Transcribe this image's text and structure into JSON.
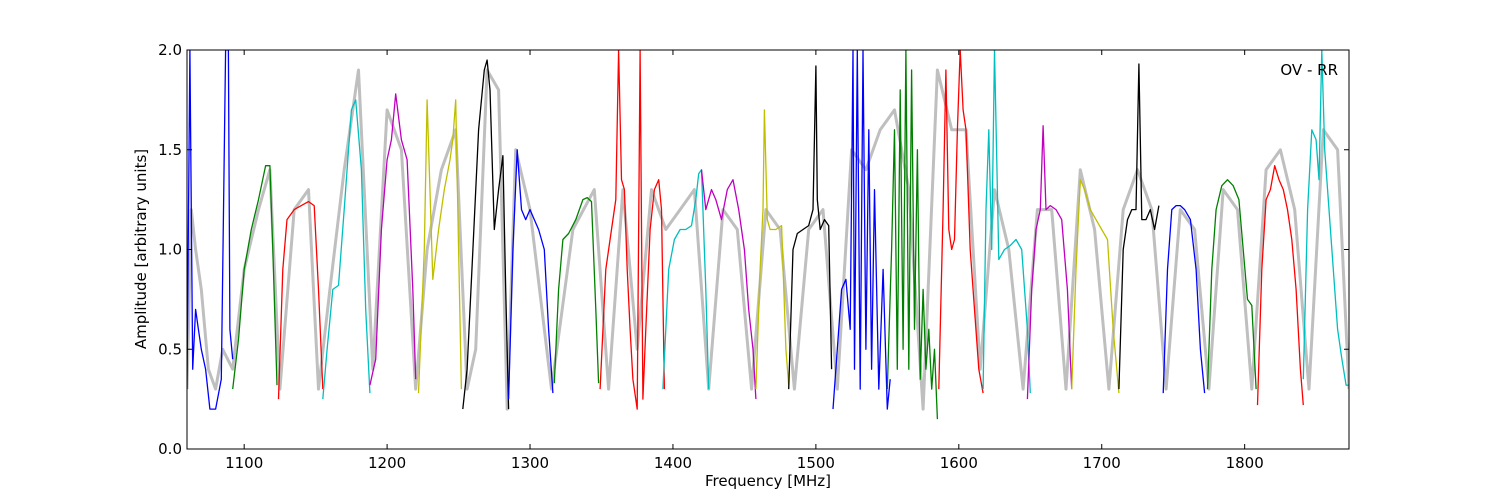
{
  "chart_data": {
    "type": "line",
    "title": "",
    "annotation": "OV - RR",
    "xlabel": "Frequency [MHz]",
    "ylabel": "Amplitude [arbitrary units]",
    "xlim": [
      1060,
      1873
    ],
    "ylim": [
      0,
      2.0
    ],
    "xticks": [
      1100,
      1200,
      1300,
      1400,
      1500,
      1600,
      1700,
      1800
    ],
    "yticks": [
      0.0,
      0.5,
      1.0,
      1.5,
      2.0
    ],
    "xtick_labels": [
      "1100",
      "1200",
      "1300",
      "1400",
      "1500",
      "1600",
      "1700",
      "1800"
    ],
    "ytick_labels": [
      "0.0",
      "0.5",
      "1.0",
      "1.5",
      "2.0"
    ],
    "grid": false,
    "colors": {
      "envelope": "#bfbfbf",
      "blue": "#0000ff",
      "green": "#008000",
      "red": "#ff0000",
      "cyan": "#00bfbf",
      "magenta": "#bf00bf",
      "yellow": "#bfbf00",
      "black": "#000000"
    },
    "envelope_series": [
      {
        "x": [
          1060,
          1063,
          1066,
          1070,
          1075,
          1080,
          1085,
          1092,
          1100,
          1110,
          1118,
          1125,
          1135,
          1145,
          1152,
          1160,
          1170,
          1180,
          1190,
          1200,
          1210,
          1220,
          1228,
          1238,
          1248,
          1256,
          1262,
          1270,
          1278,
          1284,
          1290,
          1300,
          1315,
          1330,
          1345,
          1355,
          1365,
          1375,
          1385,
          1395,
          1405,
          1415,
          1425,
          1435,
          1445,
          1455,
          1465,
          1475,
          1485,
          1495,
          1505,
          1515,
          1525,
          1535,
          1545,
          1555,
          1565,
          1575,
          1585,
          1595,
          1605,
          1615,
          1625,
          1635,
          1645,
          1655,
          1665,
          1675,
          1685,
          1695,
          1705,
          1715,
          1725,
          1735,
          1745,
          1755,
          1765,
          1775,
          1785,
          1795,
          1805,
          1815,
          1825,
          1835,
          1845,
          1855,
          1865,
          1873
        ],
        "y": [
          0.3,
          1.2,
          1.0,
          0.8,
          0.4,
          0.3,
          0.5,
          0.4,
          0.9,
          1.2,
          1.4,
          0.3,
          1.2,
          1.3,
          0.3,
          0.8,
          1.4,
          1.9,
          0.4,
          1.7,
          1.5,
          0.3,
          1.0,
          1.4,
          1.6,
          0.3,
          0.5,
          1.9,
          1.8,
          0.2,
          1.5,
          1.2,
          0.3,
          1.1,
          1.3,
          0.3,
          1.3,
          0.5,
          1.3,
          1.1,
          1.2,
          1.3,
          0.3,
          1.2,
          1.1,
          0.3,
          1.2,
          1.1,
          0.3,
          1.1,
          1.2,
          0.3,
          1.5,
          1.4,
          1.6,
          1.7,
          1.3,
          0.2,
          1.9,
          1.6,
          1.6,
          0.4,
          1.3,
          1.0,
          0.3,
          1.2,
          1.2,
          0.3,
          1.4,
          1.1,
          0.3,
          1.2,
          1.4,
          1.2,
          0.3,
          1.2,
          1.1,
          0.3,
          1.3,
          1.2,
          0.3,
          1.4,
          1.5,
          1.2,
          0.3,
          1.6,
          1.5,
          0.3
        ]
      }
    ],
    "series": [
      {
        "color": "blue",
        "x": [
          1060,
          1062,
          1064,
          1066,
          1068,
          1070,
          1073,
          1076,
          1080,
          1084,
          1087,
          1089,
          1090,
          1092
        ],
        "y": [
          0.3,
          2.0,
          0.4,
          0.7,
          0.6,
          0.5,
          0.4,
          0.2,
          0.2,
          0.35,
          2.0,
          2.0,
          0.6,
          0.45
        ]
      },
      {
        "color": "green",
        "x": [
          1092,
          1096,
          1100,
          1105,
          1110,
          1115,
          1118,
          1120,
          1123
        ],
        "y": [
          0.3,
          0.55,
          0.9,
          1.1,
          1.25,
          1.42,
          1.42,
          1.0,
          0.32
        ]
      },
      {
        "color": "red",
        "x": [
          1124,
          1127,
          1130,
          1135,
          1140,
          1145,
          1149,
          1152,
          1155
        ],
        "y": [
          0.25,
          0.9,
          1.15,
          1.2,
          1.22,
          1.24,
          1.22,
          0.8,
          0.3
        ]
      },
      {
        "color": "cyan",
        "x": [
          1155,
          1158,
          1162,
          1166,
          1170,
          1175,
          1178,
          1182,
          1185,
          1188
        ],
        "y": [
          0.25,
          0.5,
          0.8,
          0.82,
          1.2,
          1.7,
          1.75,
          1.4,
          0.7,
          0.28
        ]
      },
      {
        "color": "magenta",
        "x": [
          1188,
          1192,
          1196,
          1200,
          1203,
          1206,
          1210,
          1214,
          1218,
          1220
        ],
        "y": [
          0.32,
          0.45,
          1.1,
          1.45,
          1.55,
          1.78,
          1.55,
          1.45,
          0.8,
          0.35
        ]
      },
      {
        "color": "yellow",
        "x": [
          1222,
          1226,
          1228,
          1232,
          1236,
          1240,
          1244,
          1246,
          1248,
          1250,
          1252
        ],
        "y": [
          0.28,
          1.0,
          1.75,
          0.85,
          1.1,
          1.3,
          1.45,
          1.55,
          1.75,
          1.0,
          0.3
        ]
      },
      {
        "color": "black",
        "x": [
          1253,
          1256,
          1260,
          1264,
          1268,
          1270,
          1272,
          1275,
          1278,
          1281,
          1283,
          1285
        ],
        "y": [
          0.2,
          0.4,
          1.0,
          1.6,
          1.9,
          1.95,
          1.8,
          1.1,
          1.3,
          1.47,
          0.8,
          0.2
        ]
      },
      {
        "color": "blue",
        "x": [
          1285,
          1288,
          1291,
          1294,
          1297,
          1300,
          1303,
          1306,
          1310,
          1313,
          1316
        ],
        "y": [
          0.25,
          1.0,
          1.5,
          1.2,
          1.15,
          1.2,
          1.15,
          1.1,
          1.0,
          0.6,
          0.28
        ]
      },
      {
        "color": "green",
        "x": [
          1317,
          1320,
          1323,
          1327,
          1332,
          1337,
          1340,
          1343,
          1346,
          1348
        ],
        "y": [
          0.33,
          0.8,
          1.05,
          1.08,
          1.15,
          1.25,
          1.26,
          1.24,
          0.7,
          0.33
        ]
      },
      {
        "color": "red",
        "x": [
          1349,
          1353,
          1357,
          1360,
          1362,
          1364,
          1366,
          1368,
          1370,
          1372,
          1375,
          1377,
          1379,
          1381,
          1384,
          1387,
          1390,
          1392,
          1394
        ],
        "y": [
          0.3,
          0.9,
          1.1,
          1.25,
          2.0,
          1.35,
          1.3,
          0.9,
          0.6,
          0.35,
          0.2,
          2.0,
          0.25,
          0.6,
          1.1,
          1.3,
          1.35,
          1.2,
          0.3
        ]
      },
      {
        "color": "cyan",
        "x": [
          1393,
          1397,
          1401,
          1405,
          1409,
          1413,
          1416,
          1418,
          1420,
          1423,
          1425
        ],
        "y": [
          0.3,
          0.9,
          1.05,
          1.1,
          1.1,
          1.12,
          1.25,
          1.38,
          1.4,
          0.8,
          0.3
        ]
      },
      {
        "color": "magenta",
        "x": [
          1420,
          1423,
          1427,
          1430,
          1434,
          1438,
          1442,
          1446,
          1450,
          1453,
          1456,
          1458
        ],
        "y": [
          1.4,
          1.2,
          1.3,
          1.25,
          1.15,
          1.3,
          1.35,
          1.2,
          1.0,
          0.7,
          0.5,
          0.25
        ]
      },
      {
        "color": "yellow",
        "x": [
          1458,
          1461,
          1463,
          1464,
          1466,
          1468,
          1472,
          1476,
          1479,
          1481
        ],
        "y": [
          0.3,
          0.9,
          1.2,
          1.7,
          1.15,
          1.1,
          1.1,
          1.12,
          0.5,
          0.32
        ]
      },
      {
        "color": "black",
        "x": [
          1481,
          1484,
          1487,
          1491,
          1495,
          1498,
          1500,
          1501,
          1503,
          1506,
          1509,
          1511
        ],
        "y": [
          0.3,
          1.0,
          1.08,
          1.1,
          1.12,
          1.2,
          1.92,
          1.25,
          1.1,
          1.15,
          1.12,
          0.4
        ]
      },
      {
        "color": "blue",
        "x": [
          1512,
          1515,
          1518,
          1521,
          1524,
          1526,
          1527,
          1529,
          1531,
          1533,
          1535,
          1537,
          1539,
          1541,
          1544,
          1547,
          1550,
          1552
        ],
        "y": [
          0.2,
          0.5,
          0.8,
          0.85,
          0.6,
          2.0,
          0.4,
          2.0,
          0.3,
          2.0,
          0.5,
          1.6,
          0.4,
          1.3,
          0.3,
          0.9,
          0.2,
          0.35
        ]
      },
      {
        "color": "green",
        "x": [
          1550,
          1553,
          1555,
          1557,
          1559,
          1561,
          1563,
          1565,
          1567,
          1569,
          1571,
          1573,
          1575,
          1577,
          1579,
          1581,
          1583,
          1585
        ],
        "y": [
          0.3,
          1.0,
          1.6,
          0.4,
          1.8,
          0.5,
          2.0,
          0.4,
          1.9,
          0.6,
          1.5,
          0.35,
          0.8,
          0.4,
          0.6,
          0.3,
          0.5,
          0.15
        ]
      },
      {
        "color": "red",
        "x": [
          1586,
          1589,
          1591,
          1593,
          1595,
          1597,
          1599,
          1601,
          1603,
          1605,
          1608,
          1611,
          1614,
          1617
        ],
        "y": [
          0.3,
          1.2,
          1.9,
          1.1,
          1.0,
          1.05,
          1.6,
          2.0,
          1.7,
          1.6,
          1.0,
          0.7,
          0.4,
          0.28
        ]
      },
      {
        "color": "cyan",
        "x": [
          1617,
          1619,
          1621,
          1623,
          1625,
          1628,
          1632,
          1636,
          1640,
          1644,
          1648,
          1650
        ],
        "y": [
          0.3,
          1.2,
          1.6,
          1.0,
          2.0,
          0.95,
          1.0,
          1.02,
          1.05,
          1.0,
          0.6,
          0.28
        ]
      },
      {
        "color": "magenta",
        "x": [
          1648,
          1651,
          1654,
          1657,
          1659,
          1661,
          1664,
          1668,
          1672,
          1676,
          1679
        ],
        "y": [
          0.25,
          0.8,
          1.1,
          1.2,
          1.62,
          1.2,
          1.22,
          1.2,
          1.15,
          0.8,
          0.3
        ]
      },
      {
        "color": "yellow",
        "x": [
          1679,
          1682,
          1685,
          1688,
          1692,
          1696,
          1700,
          1704,
          1708,
          1712
        ],
        "y": [
          0.3,
          0.9,
          1.35,
          1.3,
          1.2,
          1.15,
          1.1,
          1.05,
          0.6,
          0.28
        ]
      },
      {
        "color": "black",
        "x": [
          1712,
          1715,
          1718,
          1721,
          1724,
          1726,
          1728,
          1731,
          1734,
          1737,
          1740
        ],
        "y": [
          0.3,
          1.0,
          1.15,
          1.2,
          1.2,
          1.93,
          1.15,
          1.15,
          1.2,
          1.1,
          1.22
        ]
      },
      {
        "color": "blue",
        "x": [
          1743,
          1746,
          1749,
          1752,
          1755,
          1758,
          1762,
          1766,
          1769,
          1772
        ],
        "y": [
          0.28,
          0.9,
          1.2,
          1.22,
          1.22,
          1.2,
          1.15,
          0.9,
          0.5,
          0.28
        ]
      },
      {
        "color": "green",
        "x": [
          1774,
          1777,
          1780,
          1784,
          1788,
          1792,
          1796,
          1799,
          1802,
          1805,
          1808
        ],
        "y": [
          0.3,
          0.9,
          1.2,
          1.32,
          1.35,
          1.32,
          1.25,
          1.0,
          0.75,
          0.72,
          0.3
        ]
      },
      {
        "color": "red",
        "x": [
          1809,
          1812,
          1815,
          1818,
          1821,
          1824,
          1827,
          1830,
          1833,
          1836,
          1839,
          1841
        ],
        "y": [
          0.22,
          0.9,
          1.25,
          1.3,
          1.42,
          1.35,
          1.3,
          1.2,
          1.05,
          0.8,
          0.4,
          0.22
        ]
      },
      {
        "color": "cyan",
        "x": [
          1841,
          1844,
          1847,
          1850,
          1852,
          1854,
          1856,
          1859,
          1862,
          1865,
          1868,
          1871,
          1873
        ],
        "y": [
          0.35,
          1.2,
          1.6,
          1.55,
          1.35,
          2.0,
          1.5,
          1.2,
          0.9,
          0.6,
          0.45,
          0.32,
          0.32
        ]
      }
    ]
  }
}
